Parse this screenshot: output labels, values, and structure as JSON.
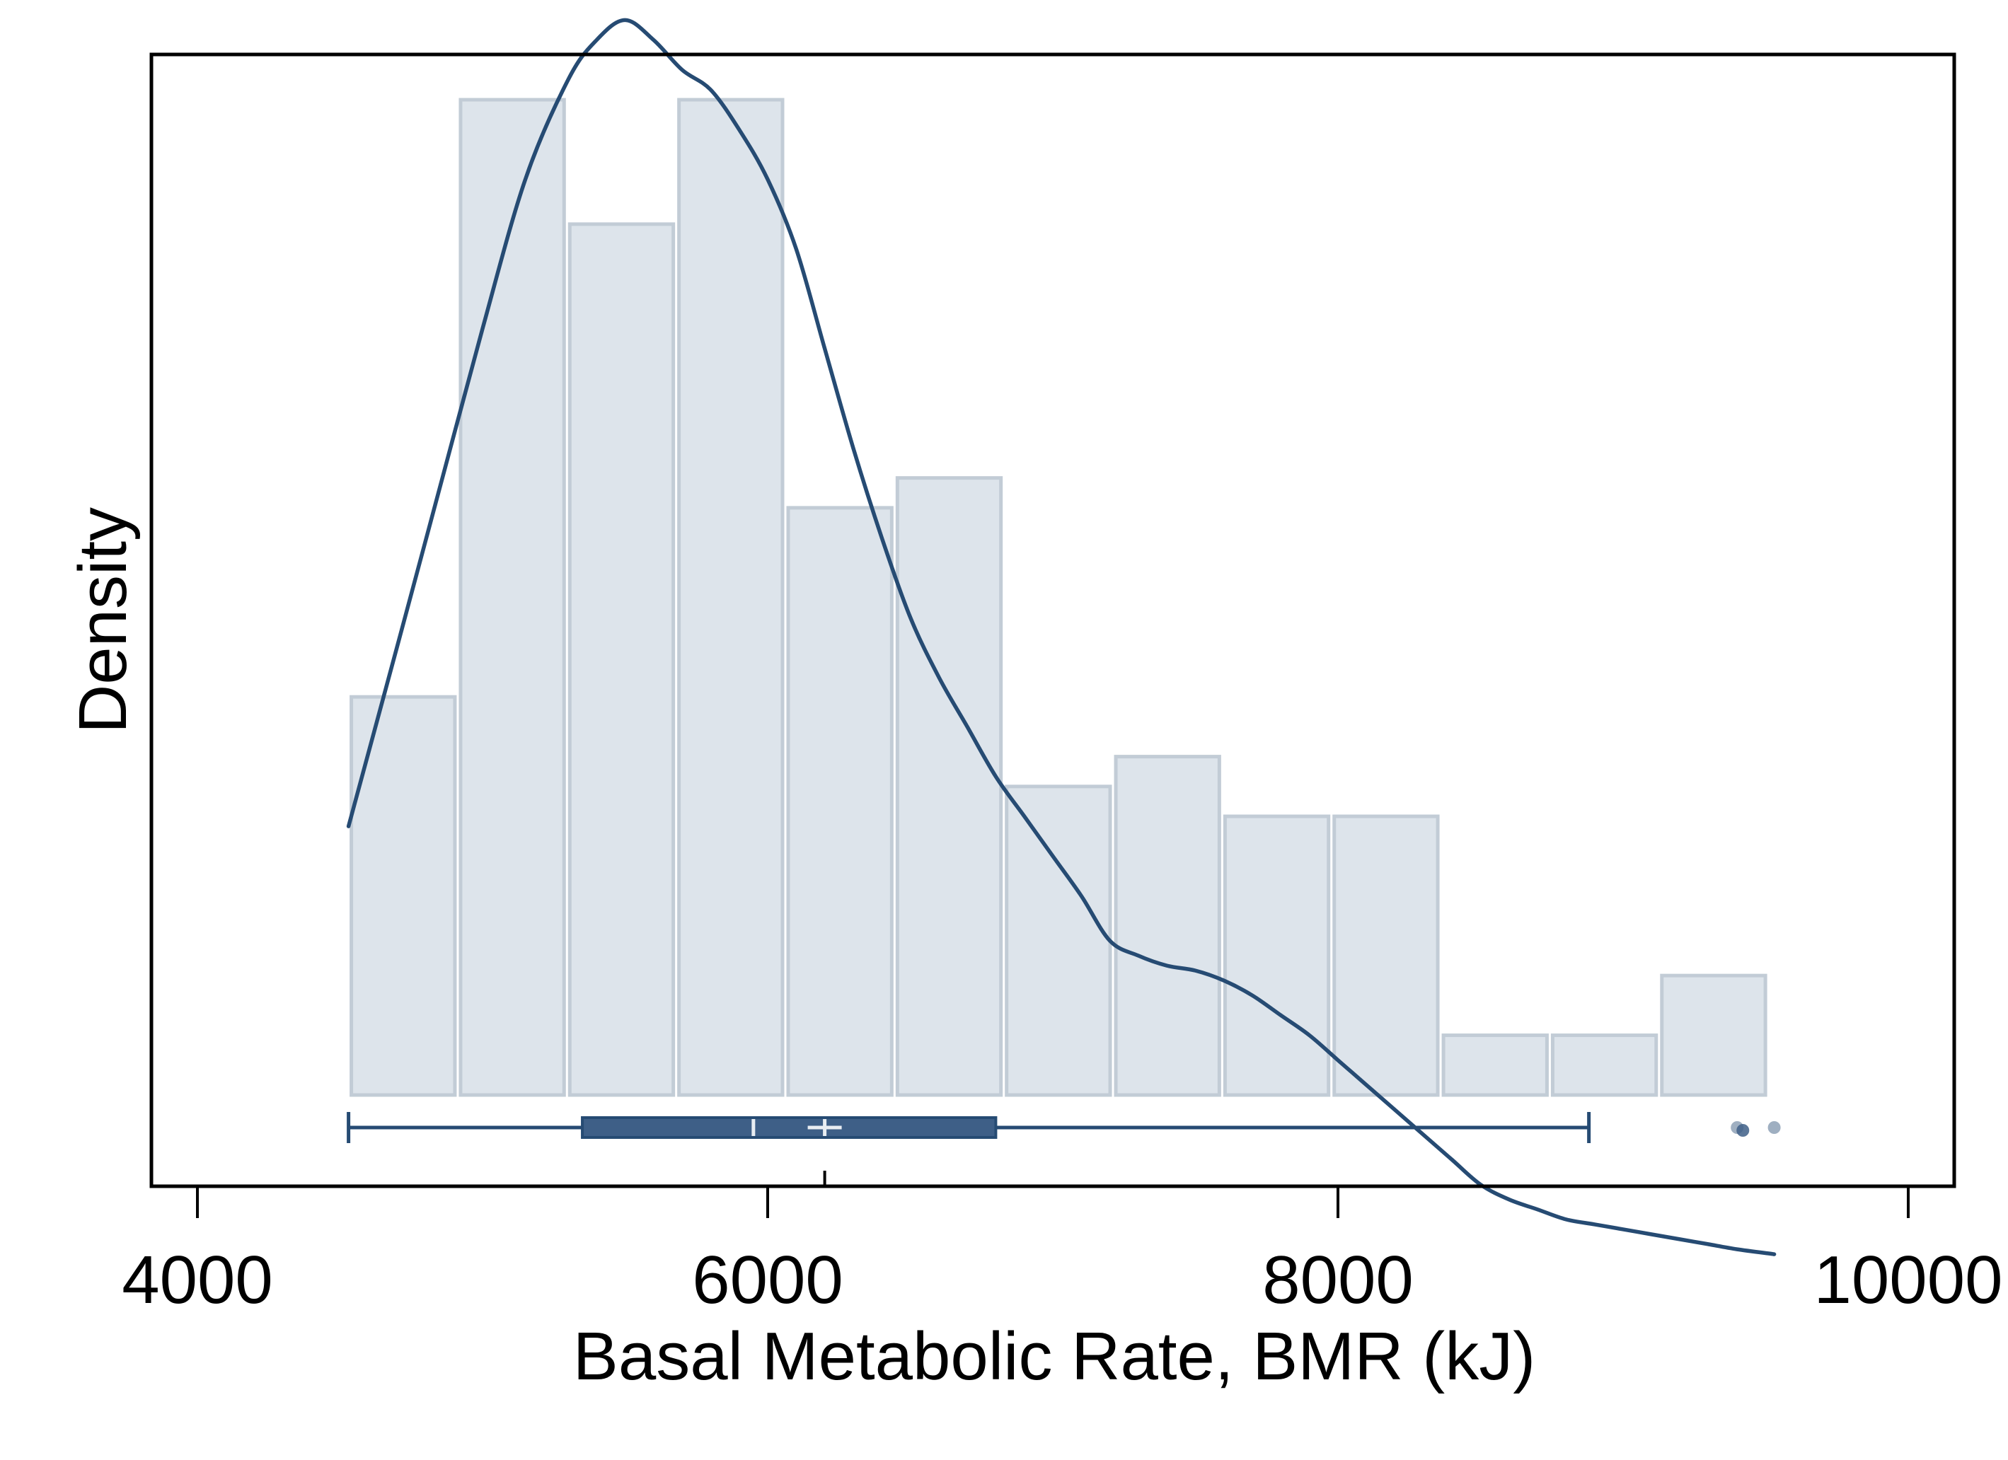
{
  "chart_data": {
    "type": "bar",
    "title": "",
    "xlabel": "Basal Metabolic Rate, BMR (kJ)",
    "ylabel": "Density",
    "xlim": [
      4000,
      10000
    ],
    "xticks": [
      {
        "value": 4000,
        "label": "4000"
      },
      {
        "value": 6000,
        "label": "6000"
      },
      {
        "value": 8000,
        "label": "8000"
      },
      {
        "value": 10000,
        "label": "10000"
      }
    ],
    "y_ticks_shown": false,
    "grid": false,
    "legend": "none",
    "histogram": {
      "bin_start": 4530,
      "bin_width": 383,
      "bin_relative_heights": [
        0.4,
        1.0,
        0.875,
        1.0,
        0.59,
        0.62,
        0.31,
        0.34,
        0.28,
        0.28,
        0.06,
        0.06,
        0.12
      ]
    },
    "density_curve": {
      "x": [
        4530,
        4700,
        4850,
        5000,
        5150,
        5300,
        5400,
        5500,
        5600,
        5700,
        5800,
        5900,
        6000,
        6100,
        6200,
        6300,
        6400,
        6500,
        6600,
        6700,
        6800,
        6900,
        7000,
        7100,
        7200,
        7300,
        7400,
        7500,
        7600,
        7700,
        7800,
        7900,
        8000,
        8100,
        8200,
        8300,
        8400,
        8500,
        8600,
        8700,
        8800,
        8900,
        9000,
        9100,
        9200,
        9300,
        9400,
        9530
      ],
      "y": [
        0.27,
        0.45,
        0.61,
        0.77,
        0.92,
        1.02,
        1.06,
        1.08,
        1.06,
        1.03,
        1.01,
        0.97,
        0.92,
        0.85,
        0.75,
        0.65,
        0.56,
        0.48,
        0.42,
        0.37,
        0.32,
        0.28,
        0.24,
        0.2,
        0.155,
        0.14,
        0.13,
        0.125,
        0.115,
        0.1,
        0.08,
        0.06,
        0.035,
        0.01,
        -0.015,
        -0.04,
        -0.065,
        -0.09,
        -0.105,
        -0.115,
        -0.125,
        -0.13,
        -0.135,
        -0.14,
        -0.145,
        -0.15,
        -0.155,
        -0.16
      ]
    },
    "boxplot": {
      "whisker_low": 4530,
      "q1": 5350,
      "median": 5950,
      "mean": 6200,
      "q3": 6800,
      "whisker_high": 8880,
      "outliers": [
        9400,
        9420,
        9530
      ]
    },
    "colors": {
      "bar_fill": "#dde4eb",
      "bar_stroke": "#c2ccd6",
      "curve": "#264b73",
      "box": "#3e5f87",
      "outlier": "#8ea1b6"
    }
  }
}
